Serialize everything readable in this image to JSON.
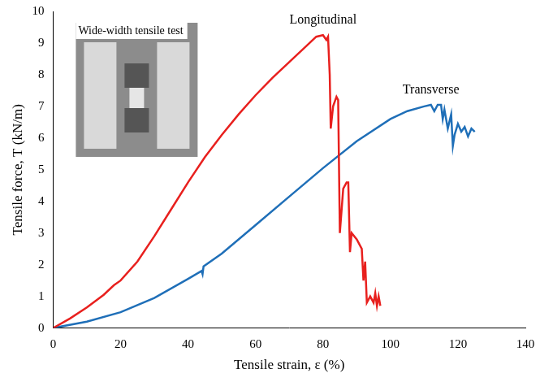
{
  "chart_data": {
    "type": "line",
    "x_label": "Tensile strain, ε (%)",
    "y_label": "Tensile force, T (kN/m)",
    "annotations": [
      "Wide-width tensile test"
    ],
    "xlim": [
      0,
      140
    ],
    "xticks": [
      0,
      20,
      40,
      60,
      80,
      100,
      120,
      140
    ],
    "ylim": [
      0,
      10
    ],
    "yticks": [
      0,
      1,
      2,
      3,
      4,
      5,
      6,
      7,
      8,
      9,
      10
    ],
    "grid": false,
    "series": [
      {
        "name": "Longitudinal",
        "color": "#e8201e",
        "x": [
          0,
          5,
          10,
          15,
          18,
          20,
          25,
          30,
          35,
          40,
          45,
          50,
          55,
          60,
          65,
          70,
          75,
          78,
          80,
          81,
          81.5,
          82,
          82.3,
          83,
          84,
          84.5,
          85,
          86,
          87,
          87.5,
          88,
          88.5,
          90,
          91.5,
          92,
          92.5,
          93,
          94,
          95,
          95.5,
          96,
          96.5,
          97
        ],
        "values": [
          0,
          0.3,
          0.65,
          1.05,
          1.35,
          1.5,
          2.1,
          2.9,
          3.75,
          4.6,
          5.4,
          6.1,
          6.75,
          7.35,
          7.9,
          8.4,
          8.9,
          9.2,
          9.25,
          9.1,
          9.2,
          8.0,
          6.3,
          7.0,
          7.3,
          7.2,
          3.0,
          4.4,
          4.6,
          4.6,
          2.4,
          3.0,
          2.8,
          2.5,
          1.5,
          2.1,
          0.8,
          1.0,
          0.8,
          1.1,
          0.7,
          1.0,
          0.7
        ]
      },
      {
        "name": "Transverse",
        "color": "#1f6fb8",
        "x": [
          0,
          10,
          20,
          30,
          40,
          44,
          44.3,
          44.6,
          50,
          60,
          70,
          80,
          90,
          100,
          105,
          110,
          112,
          113,
          114,
          115,
          115.5,
          116,
          117,
          118,
          118.5,
          119,
          120,
          121,
          122,
          123,
          124,
          125
        ],
        "values": [
          0,
          0.2,
          0.5,
          0.95,
          1.55,
          1.8,
          1.7,
          1.95,
          2.35,
          3.25,
          4.15,
          5.05,
          5.9,
          6.6,
          6.85,
          7.0,
          7.05,
          6.85,
          7.05,
          7.05,
          6.6,
          6.9,
          6.3,
          6.75,
          5.75,
          6.1,
          6.45,
          6.2,
          6.35,
          6.05,
          6.3,
          6.2
        ]
      }
    ]
  }
}
